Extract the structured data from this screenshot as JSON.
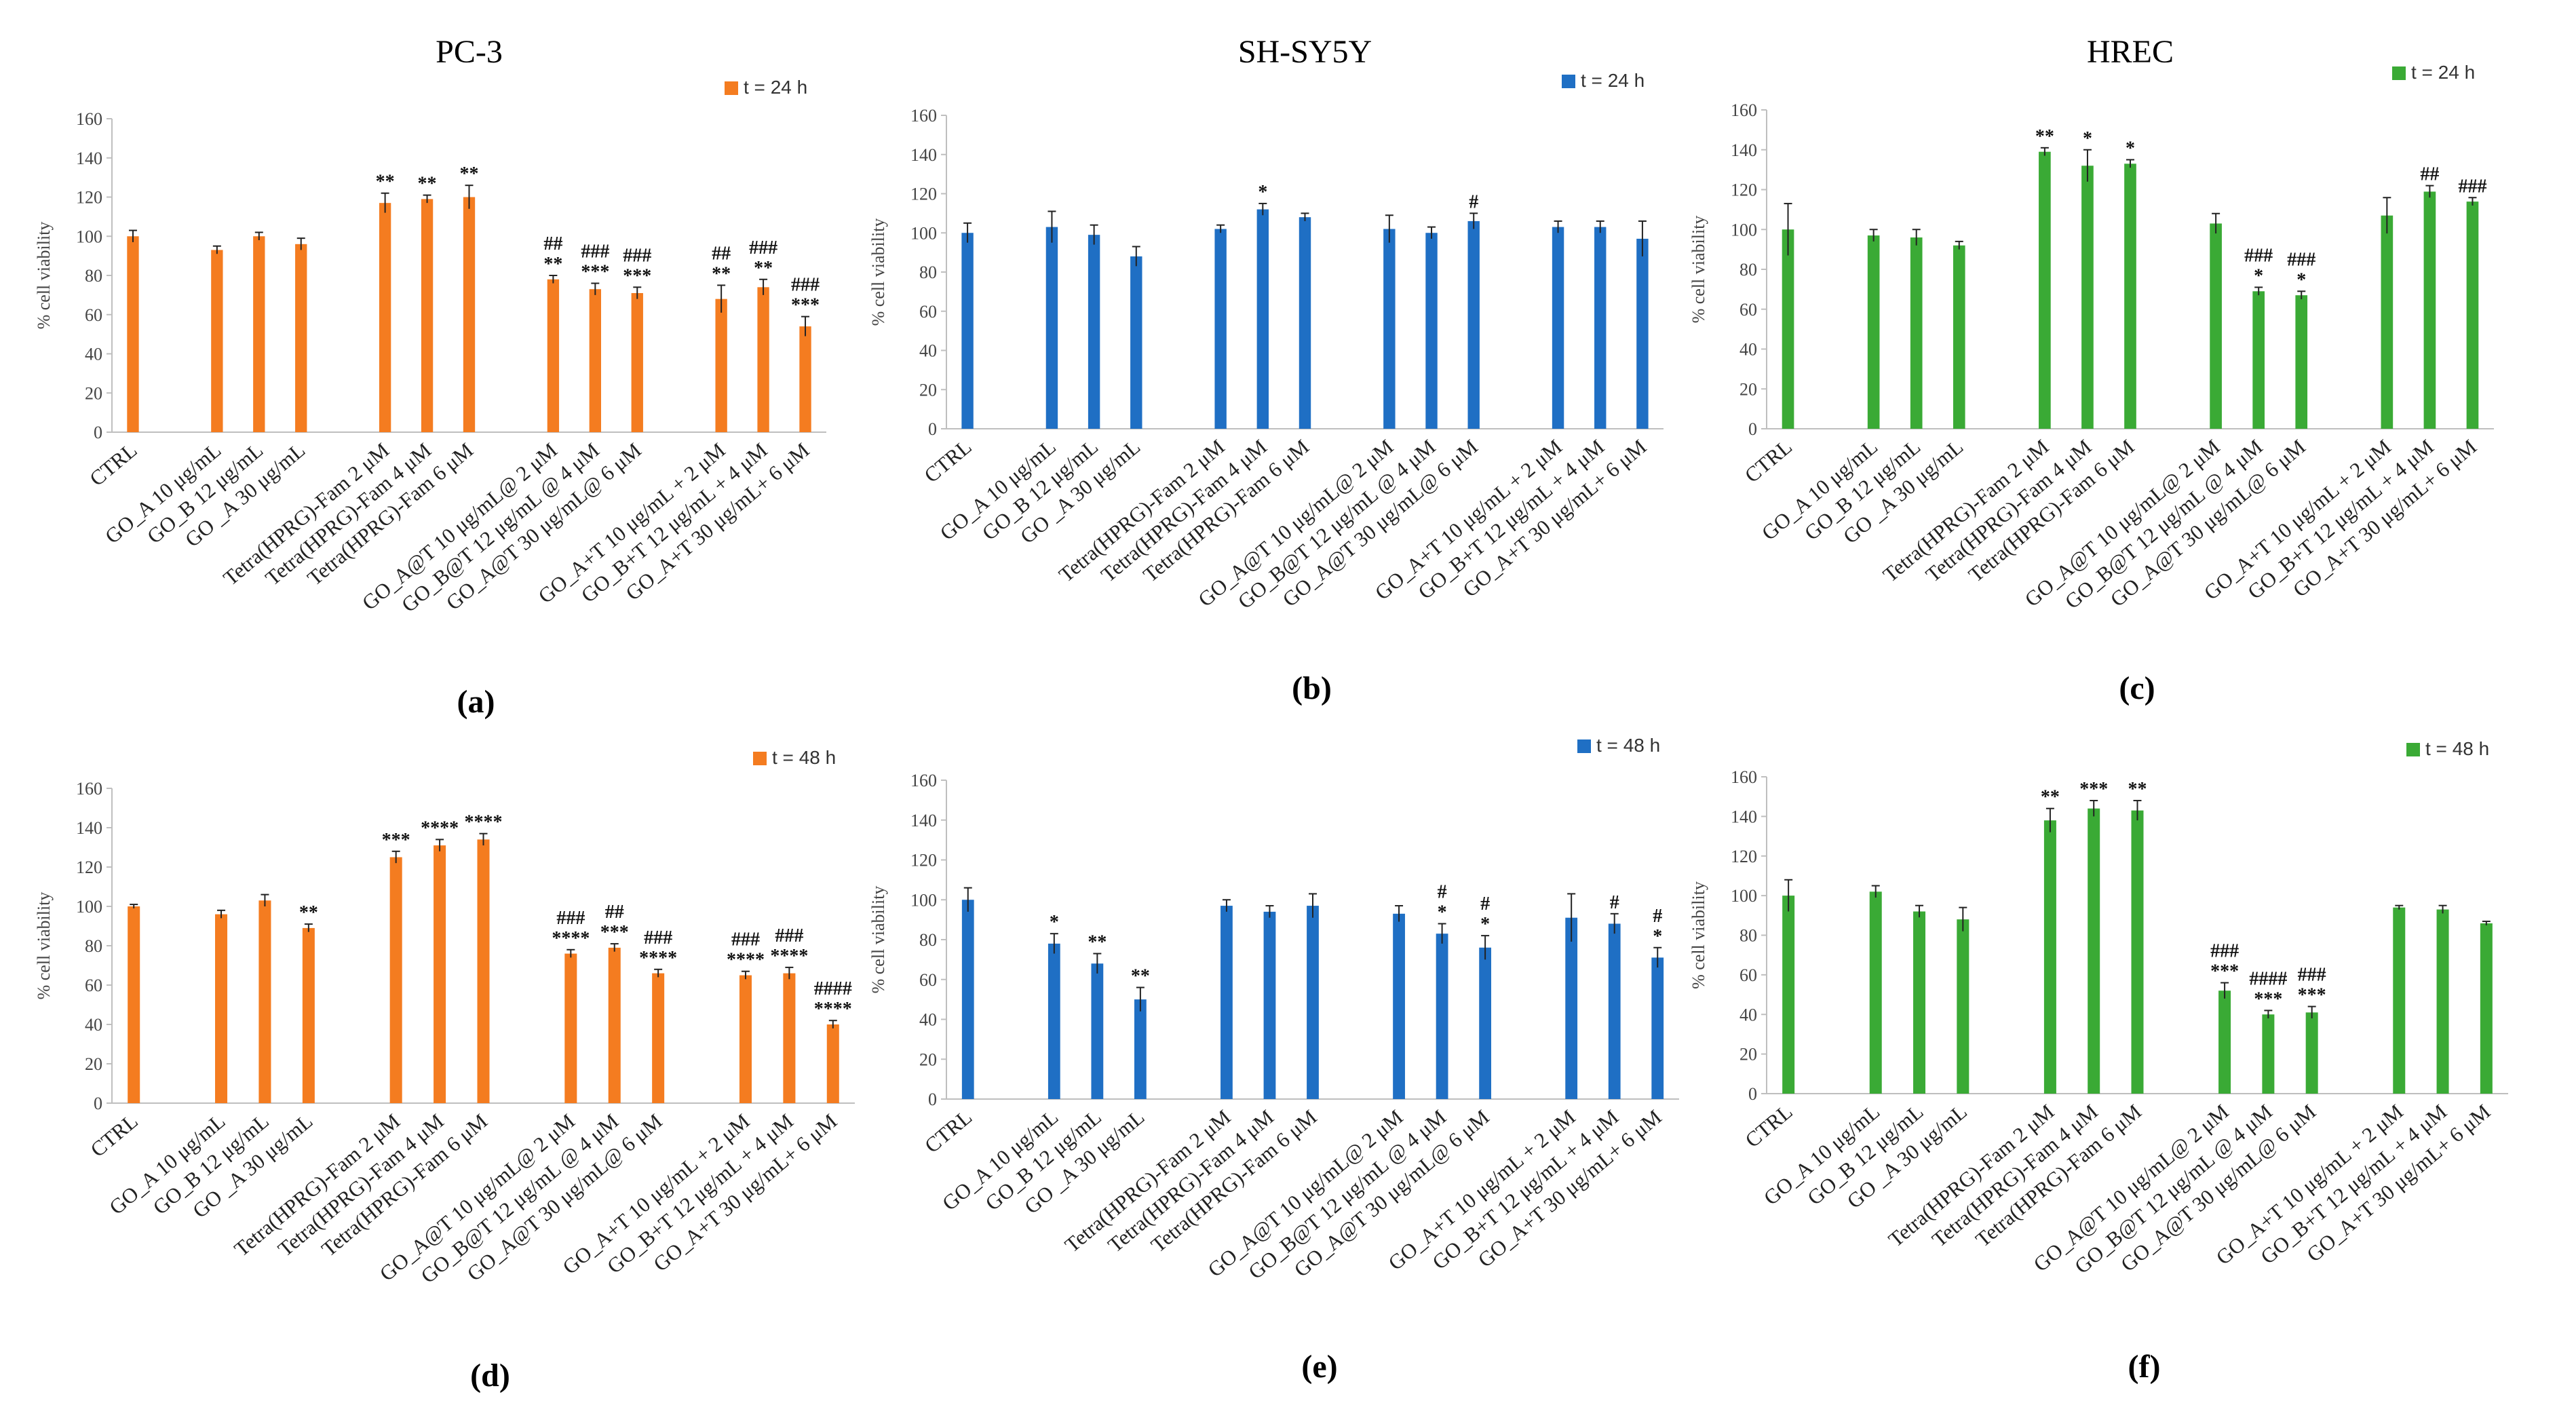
{
  "figure": {
    "subplot_labels": [
      "(a)",
      "(b)",
      "(c)",
      "(d)",
      "(e)",
      "(f)"
    ]
  },
  "chart_data": [
    {
      "type": "bar",
      "panel": "(a)",
      "title": "PC-3",
      "legend": "t = 24 h",
      "color": "#f47c20",
      "ylabel": "% cell viability",
      "ylim": [
        0,
        160
      ],
      "yticks": [
        0,
        20,
        40,
        60,
        80,
        100,
        120,
        140,
        160
      ],
      "categories": [
        "CTRL",
        "GO_A 10 μg/mL",
        "GO_B 12 μg/mL",
        "GO _A 30 μg/mL",
        "Tetra(HPRG)-Fam 2 μM",
        "Tetra(HPRG)-Fam 4 μM",
        "Tetra(HPRG)-Fam 6 μM",
        "GO_A@T 10 μg/mL@ 2 μM",
        "GO_B@T 12 μg/mL @ 4 μM",
        "GO_A@T 30 μg/mL@ 6 μM",
        "GO_A+T 10 μg/mL + 2 μM",
        "GO_B+T 12 μg/mL + 4 μM",
        "GO_A+T 30 μg/mL+ 6 μM"
      ],
      "values": [
        100,
        93,
        100,
        96,
        117,
        119,
        120,
        78,
        73,
        71,
        68,
        74,
        54
      ],
      "errors": [
        3,
        2,
        2,
        3,
        5,
        2,
        6,
        2,
        3,
        3,
        7,
        4,
        5
      ],
      "annotations": [
        "",
        "",
        "",
        "",
        "**",
        "**",
        "**",
        "##\n**",
        "###\n***",
        "###\n***",
        "##\n**",
        "###\n**",
        "###\n***"
      ]
    },
    {
      "type": "bar",
      "panel": "(b)",
      "title": "SH-SY5Y",
      "legend": "t = 24 h",
      "color": "#1f6fc4",
      "ylabel": "% cell viability",
      "ylim": [
        0,
        160
      ],
      "yticks": [
        0,
        20,
        40,
        60,
        80,
        100,
        120,
        140,
        160
      ],
      "categories": [
        "CTRL",
        "GO_A 10 μg/mL",
        "GO_B 12 μg/mL",
        "GO _A 30 μg/mL",
        "Tetra(HPRG)-Fam 2 μM",
        "Tetra(HPRG)-Fam 4 μM",
        "Tetra(HPRG)-Fam 6 μM",
        "GO_A@T 10 μg/mL@ 2 μM",
        "GO_B@T 12 μg/mL @ 4 μM",
        "GO_A@T 30 μg/mL@ 6 μM",
        "GO_A+T 10 μg/mL + 2 μM",
        "GO_B+T 12 μg/mL + 4 μM",
        "GO_A+T 30 μg/mL+ 6 μM"
      ],
      "values": [
        100,
        103,
        99,
        88,
        102,
        112,
        108,
        102,
        100,
        106,
        103,
        103,
        97
      ],
      "errors": [
        5,
        8,
        5,
        5,
        2,
        3,
        2,
        7,
        3,
        4,
        3,
        3,
        9
      ],
      "annotations": [
        "",
        "",
        "",
        "",
        "",
        "*",
        "",
        "",
        "",
        "#",
        "",
        "",
        ""
      ]
    },
    {
      "type": "bar",
      "panel": "(c)",
      "title": "HREC",
      "legend": "t = 24 h",
      "color": "#3aaa35",
      "ylabel": "% cell viability",
      "ylim": [
        0,
        160
      ],
      "yticks": [
        0,
        20,
        40,
        60,
        80,
        100,
        120,
        140,
        160
      ],
      "categories": [
        "CTRL",
        "GO_A 10 μg/mL",
        "GO_B 12 μg/mL",
        "GO _A 30 μg/mL",
        "Tetra(HPRG)-Fam 2 μM",
        "Tetra(HPRG)-Fam 4 μM",
        "Tetra(HPRG)-Fam 6 μM",
        "GO_A@T 10 μg/mL@ 2 μM",
        "GO_B@T 12 μg/mL @ 4 μM",
        "GO_A@T 30 μg/mL@ 6 μM",
        "GO_A+T 10 μg/mL + 2 μM",
        "GO_B+T 12 μg/mL + 4 μM",
        "GO_A+T 30 μg/mL+ 6 μM"
      ],
      "values": [
        100,
        97,
        96,
        92,
        139,
        132,
        133,
        103,
        69,
        67,
        107,
        119,
        114
      ],
      "errors": [
        13,
        3,
        4,
        2,
        2,
        8,
        2,
        5,
        2,
        2,
        9,
        3,
        2
      ],
      "annotations": [
        "",
        "",
        "",
        "",
        "**",
        "*",
        "*",
        "",
        "###\n*",
        "###\n*",
        "",
        "##",
        "###"
      ]
    },
    {
      "type": "bar",
      "panel": "(d)",
      "title": "",
      "legend": "t = 48 h",
      "color": "#f47c20",
      "ylabel": "% cell viability",
      "ylim": [
        0,
        160
      ],
      "yticks": [
        0,
        20,
        40,
        60,
        80,
        100,
        120,
        140,
        160
      ],
      "categories": [
        "CTRL",
        "GO_A 10 μg/mL",
        "GO_B 12 μg/mL",
        "GO _A 30 μg/mL",
        "Tetra(HPRG)-Fam 2 μM",
        "Tetra(HPRG)-Fam 4 μM",
        "Tetra(HPRG)-Fam 6 μM",
        "GO_A@T 10 μg/mL@ 2 μM",
        "GO_B@T 12 μg/mL @ 4 μM",
        "GO_A@T 30 μg/mL@ 6 μM",
        "GO_A+T 10 μg/mL + 2 μM",
        "GO_B+T 12 μg/mL + 4 μM",
        "GO_A+T 30 μg/mL+ 6 μM"
      ],
      "values": [
        100,
        96,
        103,
        89,
        125,
        131,
        134,
        76,
        79,
        66,
        65,
        66,
        40
      ],
      "errors": [
        1,
        2,
        3,
        2,
        3,
        3,
        3,
        2,
        2,
        2,
        2,
        3,
        2
      ],
      "annotations": [
        "",
        "",
        "",
        "**",
        "***",
        "****",
        "****",
        "###\n****",
        "##\n***",
        "###\n****",
        "###\n****",
        "###\n****",
        "####\n****"
      ]
    },
    {
      "type": "bar",
      "panel": "(e)",
      "title": "",
      "legend": "t = 48 h",
      "color": "#1f6fc4",
      "ylabel": "% cell viability",
      "ylim": [
        0,
        160
      ],
      "yticks": [
        0,
        20,
        40,
        60,
        80,
        100,
        120,
        140,
        160
      ],
      "categories": [
        "CTRL",
        "GO_A 10 μg/mL",
        "GO_B 12 μg/mL",
        "GO _A 30 μg/mL",
        "Tetra(HPRG)-Fam 2 μM",
        "Tetra(HPRG)-Fam 4 μM",
        "Tetra(HPRG)-Fam 6 μM",
        "GO_A@T 10 μg/mL@ 2 μM",
        "GO_B@T 12 μg/mL @ 4 μM",
        "GO_A@T 30 μg/mL@ 6 μM",
        "GO_A+T 10 μg/mL + 2 μM",
        "GO_B+T 12 μg/mL + 4 μM",
        "GO_A+T 30 μg/mL+ 6 μM"
      ],
      "values": [
        100,
        78,
        68,
        50,
        97,
        94,
        97,
        93,
        83,
        76,
        91,
        88,
        71
      ],
      "errors": [
        6,
        5,
        5,
        6,
        3,
        3,
        6,
        4,
        5,
        6,
        12,
        5,
        5
      ],
      "annotations": [
        "",
        "*",
        "**",
        "**",
        "",
        "",
        "",
        "",
        "#\n*",
        "#\n*",
        "",
        "#",
        "#\n*"
      ]
    },
    {
      "type": "bar",
      "panel": "(f)",
      "title": "",
      "legend": "t = 48 h",
      "color": "#3aaa35",
      "ylabel": "% cell viability",
      "ylim": [
        0,
        160
      ],
      "yticks": [
        0,
        20,
        40,
        60,
        80,
        100,
        120,
        140,
        160
      ],
      "categories": [
        "CTRL",
        "GO_A 10 μg/mL",
        "GO_B 12 μg/mL",
        "GO _A 30 μg/mL",
        "Tetra(HPRG)-Fam 2 μM",
        "Tetra(HPRG)-Fam 4 μM",
        "Tetra(HPRG)-Fam 6 μM",
        "GO_A@T 10 μg/mL@ 2 μM",
        "GO_B@T 12 μg/mL @ 4 μM",
        "GO_A@T 30 μg/mL@ 6 μM",
        "GO_A+T 10 μg/mL + 2 μM",
        "GO_B+T 12 μg/mL + 4 μM",
        "GO_A+T 30 μg/mL+ 6 μM"
      ],
      "values": [
        100,
        102,
        92,
        88,
        138,
        144,
        143,
        52,
        40,
        41,
        94,
        93,
        86
      ],
      "errors": [
        8,
        3,
        3,
        6,
        6,
        4,
        5,
        4,
        2,
        3,
        1,
        2,
        1
      ],
      "annotations": [
        "",
        "",
        "",
        "",
        "**",
        "***",
        "**",
        "###\n***",
        "####\n***",
        "###\n***",
        "",
        "",
        ""
      ]
    }
  ]
}
